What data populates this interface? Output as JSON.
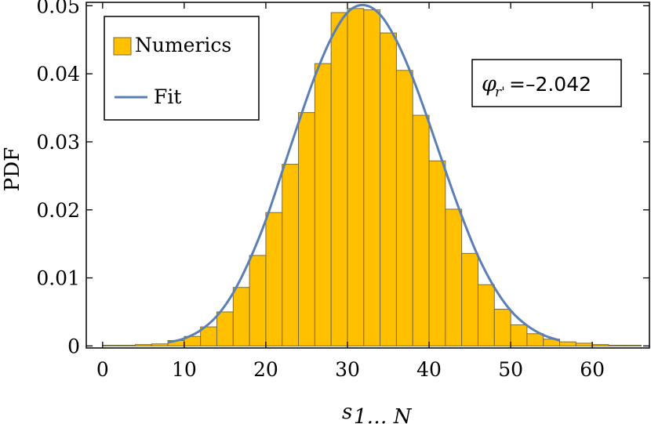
{
  "chart_data": {
    "type": "bar",
    "ylabel": "PDF",
    "xlabel": {
      "main": "s",
      "sub": "1… N"
    },
    "xlim": [
      -2,
      67
    ],
    "ylim": [
      -0.0003,
      0.0505
    ],
    "xticks": [
      "0",
      "10",
      "20",
      "30",
      "40",
      "50",
      "60"
    ],
    "yticks": [
      "0",
      "0.01",
      "0.02",
      "0.03",
      "0.04",
      "0.05"
    ],
    "grid": false,
    "legend": {
      "placement": "top-left",
      "entries": [
        "Numerics",
        "Fit"
      ]
    },
    "annotation": {
      "symbol": "φ",
      "sub": "r'",
      "text": "=–2.042"
    },
    "colors": {
      "bar_fill": "#FFC000",
      "bar_stroke": "#7a6a3a",
      "fit_line": "#5B7FB5"
    },
    "series": [
      {
        "name": "Numerics",
        "type": "bar",
        "bin_width": 2,
        "x": [
          0,
          2,
          4,
          6,
          8,
          10,
          12,
          14,
          16,
          18,
          20,
          22,
          24,
          26,
          28,
          30,
          32,
          34,
          36,
          38,
          40,
          42,
          44,
          46,
          48,
          50,
          52,
          54,
          56,
          58,
          60,
          62,
          64
        ],
        "values": [
          0.0001,
          0.0001,
          0.0002,
          0.0003,
          0.0008,
          0.0014,
          0.0028,
          0.005,
          0.0086,
          0.0133,
          0.0196,
          0.0267,
          0.0343,
          0.0415,
          0.049,
          0.0496,
          0.0494,
          0.046,
          0.0405,
          0.0339,
          0.0272,
          0.0201,
          0.0136,
          0.009,
          0.0054,
          0.0031,
          0.0018,
          0.001,
          0.0006,
          0.0004,
          0.0002,
          0.0001,
          0.0001
        ]
      },
      {
        "name": "Fit",
        "type": "line",
        "x": [
          8,
          10,
          12,
          14,
          16,
          18,
          20,
          22,
          24,
          26,
          28,
          30,
          32,
          34,
          36,
          38,
          40,
          42,
          44,
          46,
          48,
          50,
          52,
          54,
          56
        ],
        "values": [
          0.0005,
          0.0011,
          0.0023,
          0.0044,
          0.0078,
          0.0126,
          0.0185,
          0.0256,
          0.0328,
          0.0396,
          0.0452,
          0.049,
          0.0501,
          0.0487,
          0.0449,
          0.0394,
          0.0328,
          0.0258,
          0.0191,
          0.0132,
          0.0086,
          0.0052,
          0.003,
          0.0016,
          0.0008
        ]
      }
    ]
  }
}
